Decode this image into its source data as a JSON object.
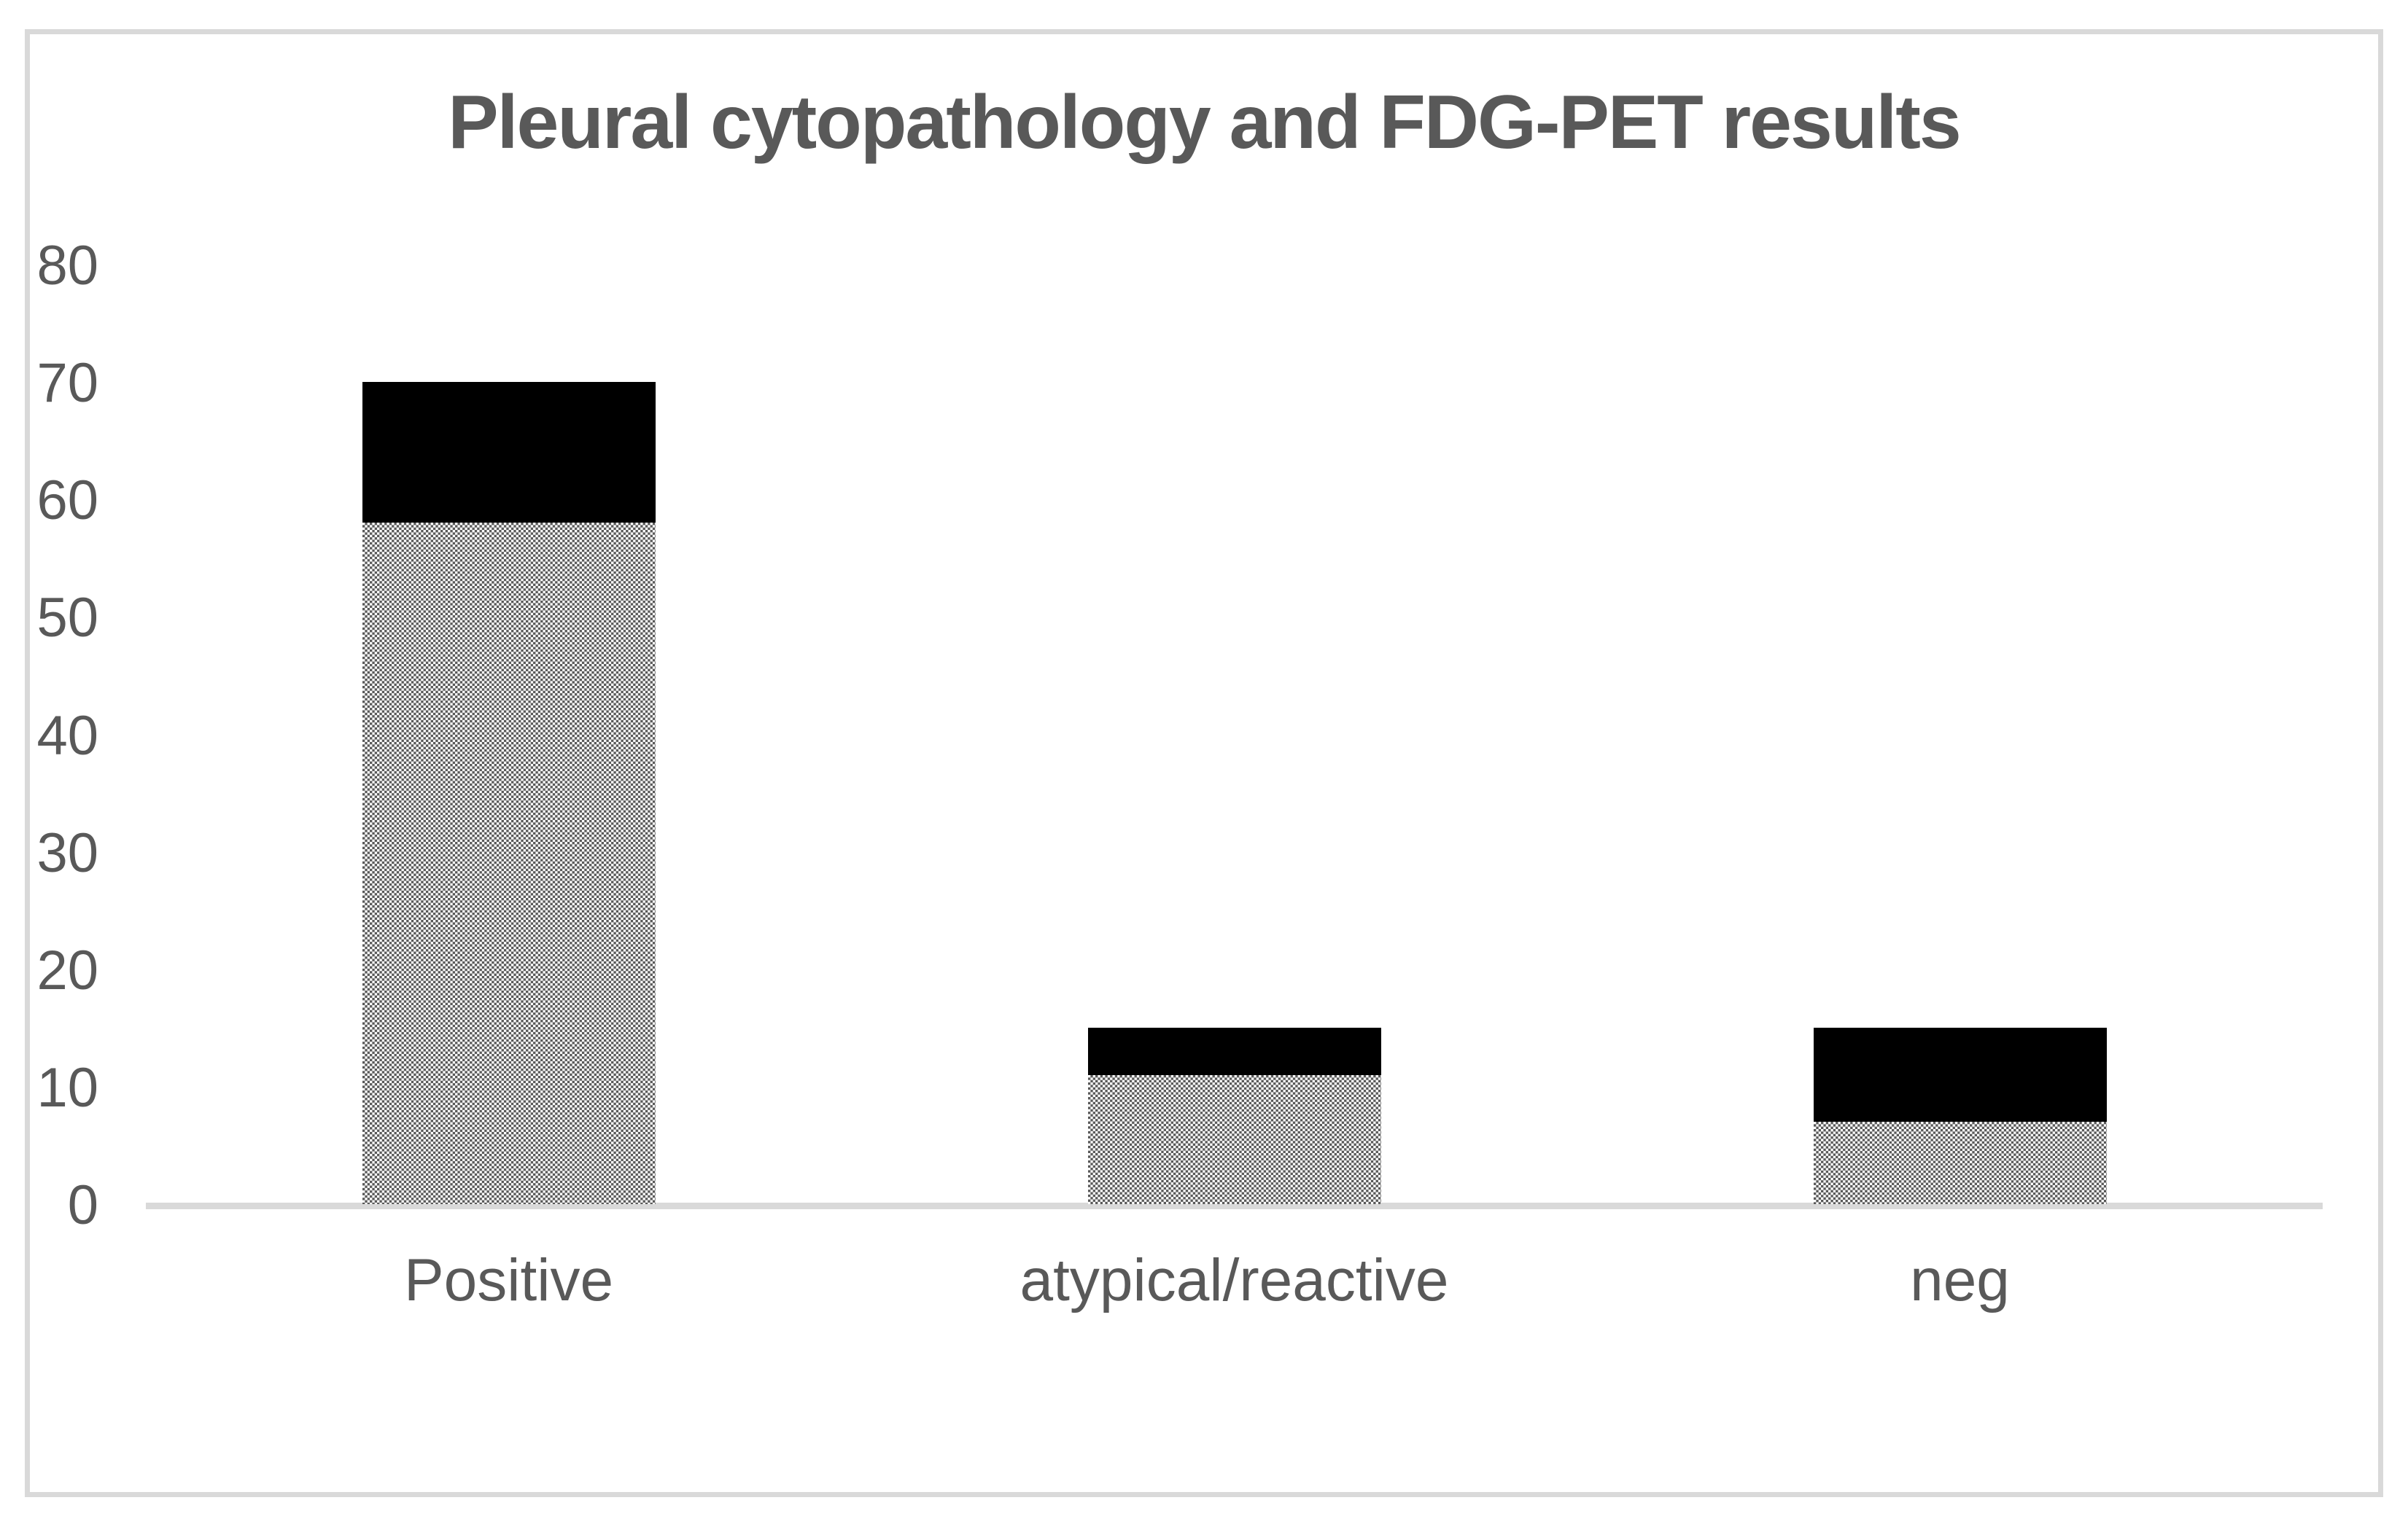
{
  "figure": {
    "background_color": "#ffffff",
    "border_color": "#d9d9d9"
  },
  "chart": {
    "title": "Pleural cytopathology and FDG-PET results",
    "title_color": "#595959",
    "axis_line_color": "#d9d9d9",
    "tick_label_color": "#595959",
    "category_label_color": "#595959"
  },
  "chart_data": {
    "type": "bar",
    "stacked": true,
    "title": "Pleural cytopathology and FDG-PET results",
    "categories": [
      "Positive",
      "atypical/reactive",
      "neg"
    ],
    "series": [
      {
        "name": "checkered pattern segment (bottom)",
        "style": "checkered",
        "color": "#595959",
        "values": [
          58,
          11,
          7
        ]
      },
      {
        "name": "solid black segment (top)",
        "style": "solid",
        "color": "#000000",
        "values": [
          12,
          4,
          8
        ]
      }
    ],
    "stack_totals": [
      70,
      15,
      15
    ],
    "xlabel": "",
    "ylabel": "",
    "y_ticks": [
      0,
      10,
      20,
      30,
      40,
      50,
      60,
      70,
      80
    ],
    "ylim": [
      0,
      80
    ],
    "grid": false,
    "legend": "none"
  }
}
